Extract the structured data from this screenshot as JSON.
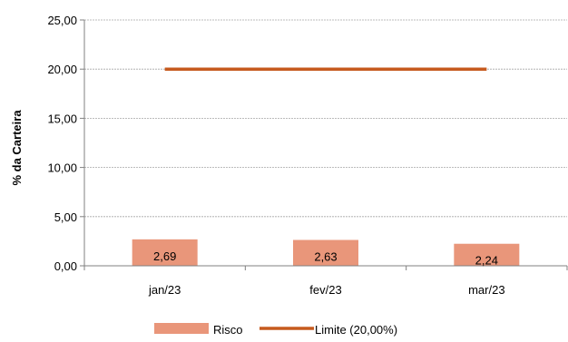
{
  "chart_data": {
    "type": "bar",
    "categories": [
      "jan/23",
      "fev/23",
      "mar/23"
    ],
    "series": [
      {
        "name": "Risco",
        "type": "bar",
        "values": [
          2.69,
          2.63,
          2.24
        ],
        "labels": [
          "2,69",
          "2,63",
          "2,24"
        ],
        "color": "#E9967A"
      },
      {
        "name": "Limite (20,00%)",
        "type": "line",
        "values": [
          20,
          20,
          20
        ],
        "color": "#C65A1E"
      }
    ],
    "ylabel": "% da Carteira",
    "xlabel": "",
    "ylim": [
      0,
      25
    ],
    "yticks": [
      0,
      5,
      10,
      15,
      20,
      25
    ],
    "ytick_labels": [
      "0,00",
      "5,00",
      "10,00",
      "15,00",
      "20,00",
      "25,00"
    ],
    "grid": true,
    "legend_position": "bottom"
  }
}
